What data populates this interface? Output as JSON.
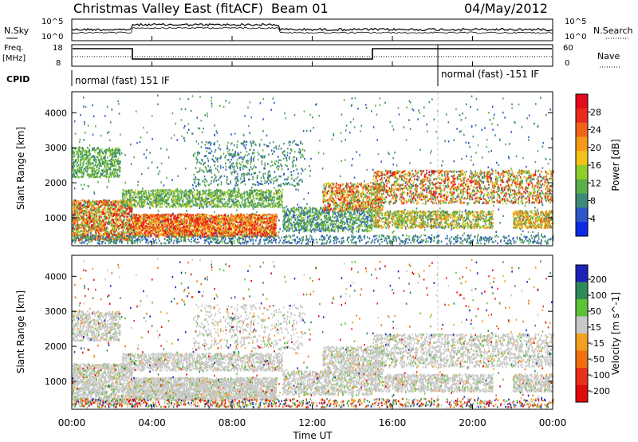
{
  "header": {
    "title": "Christmas Valley East (fitACF)",
    "beam": "Beam 01",
    "date": "04/May/2012"
  },
  "strip_labels": {
    "left_noise": "N.Sky",
    "right_noise": "N.Search",
    "noise_top": "10^5",
    "noise_bottom": "10^0",
    "left_freq_1": "Freq.",
    "left_freq_2": "[MHz]",
    "freq_top": "18",
    "freq_bottom": "8",
    "right_nave": "Nave",
    "nave_top": "60",
    "nave_bottom": "0",
    "cpid": "CPID",
    "cpid_mode_1": "normal (fast) 151 IF",
    "cpid_mode_2": "normal (fast) -151 IF"
  },
  "x_axis": {
    "label": "Time UT",
    "ticks": [
      "00:00",
      "04:00",
      "08:00",
      "12:00",
      "16:00",
      "20:00",
      "00:00"
    ]
  },
  "colors": {
    "power_scale": [
      "#0a2ae6",
      "#2f58c8",
      "#3e8a78",
      "#5cae4a",
      "#8fcd2a",
      "#f2c218",
      "#f59a18",
      "#f2621a",
      "#ea2a1e",
      "#e40a1a"
    ],
    "velocity_scale": [
      "#1c22b8",
      "#2f8a5a",
      "#5dc236",
      "#c8c8c8",
      "#f2a020",
      "#f07010",
      "#e8301a",
      "#e00a0a"
    ]
  },
  "chart_data": [
    {
      "type": "line",
      "title": "Christmas Valley East (fitACF)",
      "subtitle": "Beam 01",
      "panel": "noise",
      "series": [
        {
          "name": "N.Sky"
        },
        {
          "name": "N.Search"
        }
      ],
      "y_scale": "log",
      "ylim": [
        1,
        100000
      ]
    },
    {
      "type": "line",
      "panel": "frequency / nave",
      "series": [
        {
          "name": "Freq.",
          "x": [
            "00:00",
            "03:00",
            "03:00",
            "15:10",
            "15:10",
            "24:00"
          ],
          "values": [
            17,
            17,
            10,
            10,
            17,
            17
          ]
        },
        {
          "name": "Nave"
        }
      ],
      "ylim": [
        8,
        18
      ]
    },
    {
      "type": "heatmap",
      "panel": "power",
      "ylabel": "Slant Range [km]",
      "xlabel": "Time UT",
      "yticks": [
        1000,
        2000,
        3000,
        4000
      ],
      "colorbar_label": "Power [dB]",
      "colorbar_ticks": [
        "4",
        "8",
        "12",
        "16",
        "20",
        "24",
        "28"
      ],
      "ylim": [
        200,
        4600
      ],
      "xlim": [
        "00:00",
        "24:00"
      ]
    },
    {
      "type": "heatmap",
      "panel": "velocity",
      "ylabel": "Slant Range [km]",
      "xlabel": "Time UT",
      "yticks": [
        1000,
        2000,
        3000,
        4000
      ],
      "colorbar_label": "Velocity [m s^-1]",
      "colorbar_ticks": [
        "200",
        "100",
        "50",
        "15",
        "-15",
        "-50",
        "-100",
        "-200"
      ],
      "ylim": [
        200,
        4600
      ],
      "xlim": [
        "00:00",
        "24:00"
      ]
    }
  ]
}
